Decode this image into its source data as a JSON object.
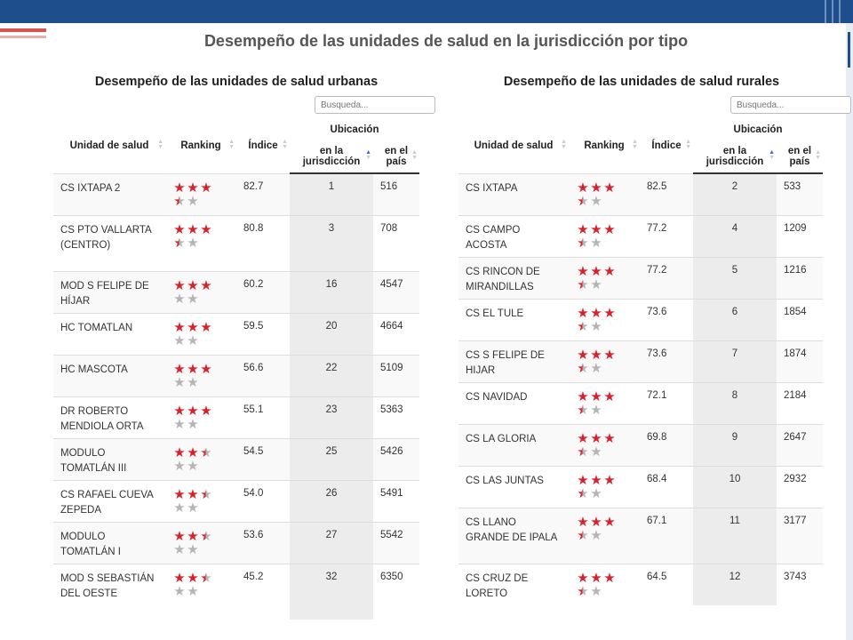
{
  "main_title": "Desempeño de las unidades de salud en la jurisdicción por tipo",
  "search_placeholder": "Busqueda...",
  "headers": {
    "unidad": "Unidad de salud",
    "ranking": "Ranking",
    "indice": "Índice",
    "ubicacion": "Ubicación",
    "jurisdiccion": "en la jurisdicción",
    "pais": "en el país"
  },
  "colors": {
    "star_full": "#d9212b",
    "star_empty": "#b5b5b5",
    "top_bar": "#1f4e8c"
  },
  "urbanas": {
    "title": "Desempeño de las unidades de salud urbanas",
    "rows": [
      {
        "unidad": "CS IXTAPA 2",
        "stars": 3.5,
        "indice": "82.7",
        "jur": "1",
        "pais": "516",
        "lines": 2
      },
      {
        "unidad": "CS PTO VALLARTA (CENTRO)",
        "stars": 3.6,
        "indice": "80.8",
        "jur": "3",
        "pais": "708",
        "lines": 3
      },
      {
        "unidad": "MOD S FELIPE DE HÍJAR",
        "stars": 3.0,
        "indice": "60.2",
        "jur": "16",
        "pais": "4547",
        "lines": 2
      },
      {
        "unidad": "HC TOMATLAN",
        "stars": 3.0,
        "indice": "59.5",
        "jur": "20",
        "pais": "4664",
        "lines": 2
      },
      {
        "unidad": "HC MASCOTA",
        "stars": 2.8,
        "indice": "56.6",
        "jur": "22",
        "pais": "5109",
        "lines": 2
      },
      {
        "unidad": "DR ROBERTO MENDIOLA ORTA",
        "stars": 2.8,
        "indice": "55.1",
        "jur": "23",
        "pais": "5363",
        "lines": 2
      },
      {
        "unidad": "MODULO TOMATLÁN III",
        "stars": 2.7,
        "indice": "54.5",
        "jur": "25",
        "pais": "5426",
        "lines": 2
      },
      {
        "unidad": "CS RAFAEL CUEVA ZEPEDA",
        "stars": 2.7,
        "indice": "54.0",
        "jur": "26",
        "pais": "5491",
        "lines": 2
      },
      {
        "unidad": "MODULO TOMATLÁN I",
        "stars": 2.7,
        "indice": "53.6",
        "jur": "27",
        "pais": "5542",
        "lines": 2
      },
      {
        "unidad": "MOD S SEBASTIÁN DEL OESTE",
        "stars": 2.4,
        "indice": "45.2",
        "jur": "32",
        "pais": "6350",
        "lines": 3
      }
    ]
  },
  "rurales": {
    "title": "Desempeño de las unidades de salud rurales",
    "rows": [
      {
        "unidad": "CS IXTAPA",
        "stars": 3.5,
        "indice": "82.5",
        "jur": "2",
        "pais": "533",
        "lines": 2
      },
      {
        "unidad": "CS CAMPO ACOSTA",
        "stars": 3.5,
        "indice": "77.2",
        "jur": "4",
        "pais": "1209",
        "lines": 2
      },
      {
        "unidad": "CS RINCON DE MIRANDILLAS",
        "stars": 3.5,
        "indice": "77.2",
        "jur": "5",
        "pais": "1216",
        "lines": 2
      },
      {
        "unidad": "CS EL TULE",
        "stars": 3.5,
        "indice": "73.6",
        "jur": "6",
        "pais": "1854",
        "lines": 2
      },
      {
        "unidad": "CS S FELIPE DE HIJAR",
        "stars": 3.5,
        "indice": "73.6",
        "jur": "7",
        "pais": "1874",
        "lines": 2
      },
      {
        "unidad": "CS NAVIDAD",
        "stars": 3.4,
        "indice": "72.1",
        "jur": "8",
        "pais": "2184",
        "lines": 2
      },
      {
        "unidad": "CS LA GLORIA",
        "stars": 3.4,
        "indice": "69.8",
        "jur": "9",
        "pais": "2647",
        "lines": 2
      },
      {
        "unidad": "CS LAS JUNTAS",
        "stars": 3.4,
        "indice": "68.4",
        "jur": "10",
        "pais": "2932",
        "lines": 2
      },
      {
        "unidad": "CS LLANO GRANDE DE IPALA",
        "stars": 3.4,
        "indice": "67.1",
        "jur": "11",
        "pais": "3177",
        "lines": 3
      },
      {
        "unidad": "CS CRUZ DE LORETO",
        "stars": 3.4,
        "indice": "64.5",
        "jur": "12",
        "pais": "3743",
        "lines": 2
      }
    ]
  }
}
